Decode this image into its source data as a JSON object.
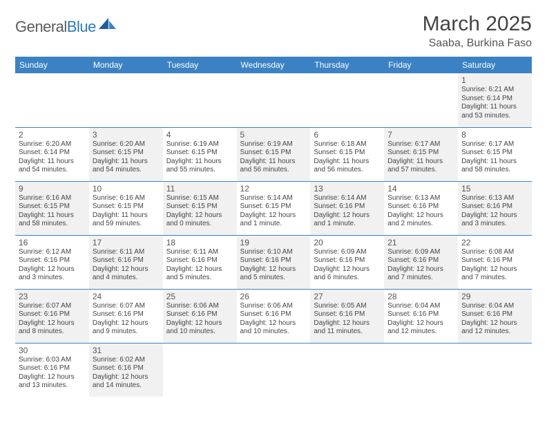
{
  "logo": {
    "text1": "General",
    "text2": "Blue"
  },
  "title": "March 2025",
  "location": "Saaba, Burkina Faso",
  "colors": {
    "header_bg": "#3b82c4",
    "header_text": "#ffffff",
    "shaded_bg": "#f1f1f1",
    "border": "#3b82c4",
    "text": "#444444",
    "logo_gray": "#5a5a5a",
    "logo_blue": "#2a7ab8"
  },
  "weekdays": [
    "Sunday",
    "Monday",
    "Tuesday",
    "Wednesday",
    "Thursday",
    "Friday",
    "Saturday"
  ],
  "cells": [
    [
      {
        "blank": true
      },
      {
        "blank": true
      },
      {
        "blank": true
      },
      {
        "blank": true
      },
      {
        "blank": true
      },
      {
        "blank": true
      },
      {
        "day": "1",
        "sunrise": "Sunrise: 6:21 AM",
        "sunset": "Sunset: 6:14 PM",
        "daylight": "Daylight: 11 hours and 53 minutes."
      }
    ],
    [
      {
        "day": "2",
        "sunrise": "Sunrise: 6:20 AM",
        "sunset": "Sunset: 6:14 PM",
        "daylight": "Daylight: 11 hours and 54 minutes."
      },
      {
        "day": "3",
        "sunrise": "Sunrise: 6:20 AM",
        "sunset": "Sunset: 6:15 PM",
        "daylight": "Daylight: 11 hours and 54 minutes."
      },
      {
        "day": "4",
        "sunrise": "Sunrise: 6:19 AM",
        "sunset": "Sunset: 6:15 PM",
        "daylight": "Daylight: 11 hours and 55 minutes."
      },
      {
        "day": "5",
        "sunrise": "Sunrise: 6:19 AM",
        "sunset": "Sunset: 6:15 PM",
        "daylight": "Daylight: 11 hours and 56 minutes."
      },
      {
        "day": "6",
        "sunrise": "Sunrise: 6:18 AM",
        "sunset": "Sunset: 6:15 PM",
        "daylight": "Daylight: 11 hours and 56 minutes."
      },
      {
        "day": "7",
        "sunrise": "Sunrise: 6:17 AM",
        "sunset": "Sunset: 6:15 PM",
        "daylight": "Daylight: 11 hours and 57 minutes."
      },
      {
        "day": "8",
        "sunrise": "Sunrise: 6:17 AM",
        "sunset": "Sunset: 6:15 PM",
        "daylight": "Daylight: 11 hours and 58 minutes."
      }
    ],
    [
      {
        "day": "9",
        "sunrise": "Sunrise: 6:16 AM",
        "sunset": "Sunset: 6:15 PM",
        "daylight": "Daylight: 11 hours and 58 minutes."
      },
      {
        "day": "10",
        "sunrise": "Sunrise: 6:16 AM",
        "sunset": "Sunset: 6:15 PM",
        "daylight": "Daylight: 11 hours and 59 minutes."
      },
      {
        "day": "11",
        "sunrise": "Sunrise: 6:15 AM",
        "sunset": "Sunset: 6:15 PM",
        "daylight": "Daylight: 12 hours and 0 minutes."
      },
      {
        "day": "12",
        "sunrise": "Sunrise: 6:14 AM",
        "sunset": "Sunset: 6:15 PM",
        "daylight": "Daylight: 12 hours and 1 minute."
      },
      {
        "day": "13",
        "sunrise": "Sunrise: 6:14 AM",
        "sunset": "Sunset: 6:16 PM",
        "daylight": "Daylight: 12 hours and 1 minute."
      },
      {
        "day": "14",
        "sunrise": "Sunrise: 6:13 AM",
        "sunset": "Sunset: 6:16 PM",
        "daylight": "Daylight: 12 hours and 2 minutes."
      },
      {
        "day": "15",
        "sunrise": "Sunrise: 6:13 AM",
        "sunset": "Sunset: 6:16 PM",
        "daylight": "Daylight: 12 hours and 3 minutes."
      }
    ],
    [
      {
        "day": "16",
        "sunrise": "Sunrise: 6:12 AM",
        "sunset": "Sunset: 6:16 PM",
        "daylight": "Daylight: 12 hours and 3 minutes."
      },
      {
        "day": "17",
        "sunrise": "Sunrise: 6:11 AM",
        "sunset": "Sunset: 6:16 PM",
        "daylight": "Daylight: 12 hours and 4 minutes."
      },
      {
        "day": "18",
        "sunrise": "Sunrise: 6:11 AM",
        "sunset": "Sunset: 6:16 PM",
        "daylight": "Daylight: 12 hours and 5 minutes."
      },
      {
        "day": "19",
        "sunrise": "Sunrise: 6:10 AM",
        "sunset": "Sunset: 6:16 PM",
        "daylight": "Daylight: 12 hours and 5 minutes."
      },
      {
        "day": "20",
        "sunrise": "Sunrise: 6:09 AM",
        "sunset": "Sunset: 6:16 PM",
        "daylight": "Daylight: 12 hours and 6 minutes."
      },
      {
        "day": "21",
        "sunrise": "Sunrise: 6:09 AM",
        "sunset": "Sunset: 6:16 PM",
        "daylight": "Daylight: 12 hours and 7 minutes."
      },
      {
        "day": "22",
        "sunrise": "Sunrise: 6:08 AM",
        "sunset": "Sunset: 6:16 PM",
        "daylight": "Daylight: 12 hours and 7 minutes."
      }
    ],
    [
      {
        "day": "23",
        "sunrise": "Sunrise: 6:07 AM",
        "sunset": "Sunset: 6:16 PM",
        "daylight": "Daylight: 12 hours and 8 minutes."
      },
      {
        "day": "24",
        "sunrise": "Sunrise: 6:07 AM",
        "sunset": "Sunset: 6:16 PM",
        "daylight": "Daylight: 12 hours and 9 minutes."
      },
      {
        "day": "25",
        "sunrise": "Sunrise: 6:06 AM",
        "sunset": "Sunset: 6:16 PM",
        "daylight": "Daylight: 12 hours and 10 minutes."
      },
      {
        "day": "26",
        "sunrise": "Sunrise: 6:06 AM",
        "sunset": "Sunset: 6:16 PM",
        "daylight": "Daylight: 12 hours and 10 minutes."
      },
      {
        "day": "27",
        "sunrise": "Sunrise: 6:05 AM",
        "sunset": "Sunset: 6:16 PM",
        "daylight": "Daylight: 12 hours and 11 minutes."
      },
      {
        "day": "28",
        "sunrise": "Sunrise: 6:04 AM",
        "sunset": "Sunset: 6:16 PM",
        "daylight": "Daylight: 12 hours and 12 minutes."
      },
      {
        "day": "29",
        "sunrise": "Sunrise: 6:04 AM",
        "sunset": "Sunset: 6:16 PM",
        "daylight": "Daylight: 12 hours and 12 minutes."
      }
    ],
    [
      {
        "day": "30",
        "sunrise": "Sunrise: 6:03 AM",
        "sunset": "Sunset: 6:16 PM",
        "daylight": "Daylight: 12 hours and 13 minutes."
      },
      {
        "day": "31",
        "sunrise": "Sunrise: 6:02 AM",
        "sunset": "Sunset: 6:16 PM",
        "daylight": "Daylight: 12 hours and 14 minutes."
      },
      {
        "blank": true
      },
      {
        "blank": true
      },
      {
        "blank": true
      },
      {
        "blank": true
      },
      {
        "blank": true
      }
    ]
  ]
}
